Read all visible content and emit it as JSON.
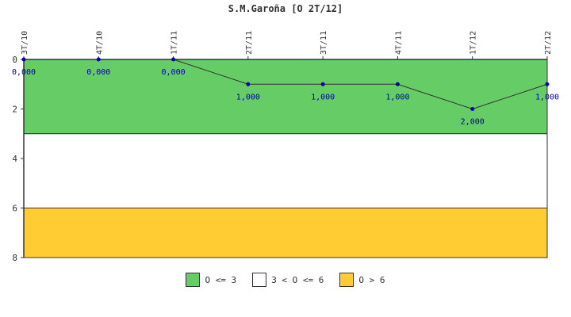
{
  "chart_data": {
    "type": "line",
    "title": "S.M.Garoña [O 2T/12]",
    "categories": [
      "3T/10",
      "4T/10",
      "1T/11",
      "2T/11",
      "3T/11",
      "4T/11",
      "1T/12",
      "2T/12"
    ],
    "values": [
      0,
      0,
      0,
      1,
      1,
      1,
      2,
      1
    ],
    "data_labels": [
      "0,000",
      "0,000",
      "0,000",
      "1,000",
      "1,000",
      "1,000",
      "2,000",
      "1,000"
    ],
    "ylim": [
      0,
      8
    ],
    "y_inverted": true,
    "yticks": [
      0,
      2,
      4,
      6,
      8
    ],
    "x_axis_position": "top",
    "grid": false,
    "legend_position": "bottom-center",
    "line_color": "#333333",
    "marker_color": "#0000aa",
    "bands": [
      {
        "from": 0,
        "to": 3,
        "color": "#66cc66",
        "label": "O <= 3"
      },
      {
        "from": 3,
        "to": 6,
        "color": "#ffffff",
        "label": "3 < O <= 6"
      },
      {
        "from": 6,
        "to": 8,
        "color": "#ffcc33",
        "label": "O > 6"
      }
    ]
  }
}
